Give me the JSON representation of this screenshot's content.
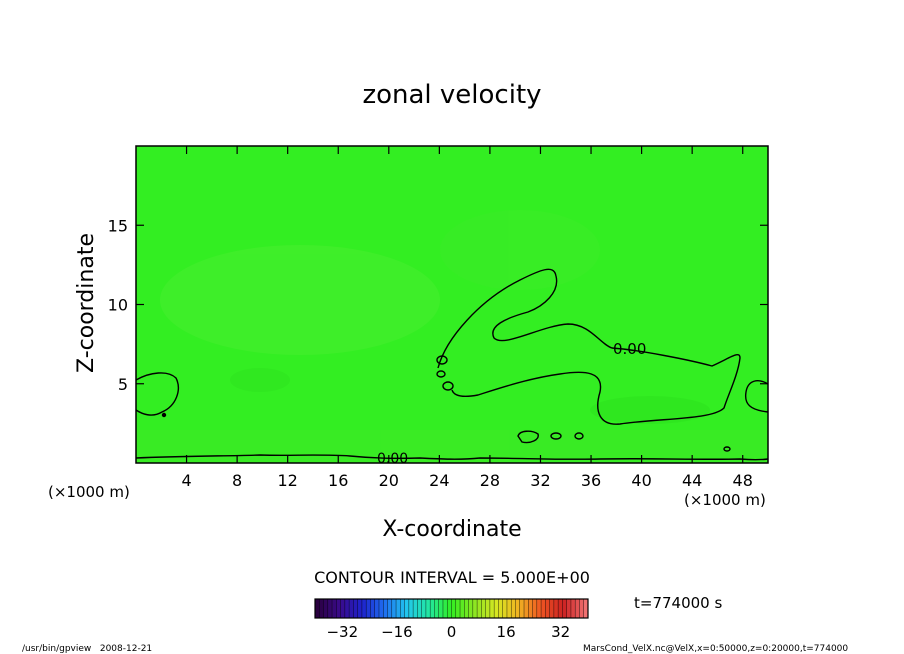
{
  "chart_data": {
    "type": "heatmap",
    "title": "zonal velocity",
    "xlabel": "X-coordinate",
    "ylabel": "Z-coordinate",
    "x_unit": "(×1000 m)",
    "xlim": [
      0,
      50
    ],
    "ylim": [
      0,
      20
    ],
    "x_ticks": [
      4,
      8,
      12,
      16,
      20,
      24,
      28,
      32,
      36,
      40,
      44,
      48
    ],
    "y_ticks": [
      5,
      10,
      15
    ],
    "field_color": "#33ee22",
    "contour_level_labels": [
      "0.00",
      "0.00"
    ],
    "contour_interval_text": "CONTOUR INTERVAL = 5.000E+00",
    "time_text": "t=774000 s",
    "colorbar": {
      "range": [
        -40,
        40
      ],
      "ticks": [
        -32,
        -16,
        0,
        16,
        32
      ],
      "colors": [
        "#2a0040",
        "#3a0a8a",
        "#1e22cc",
        "#1f6ef0",
        "#22c6ee",
        "#22e8a0",
        "#33ee22",
        "#8ae622",
        "#d6e622",
        "#f0b322",
        "#ee5522",
        "#cc2222",
        "#f07070"
      ]
    },
    "footer_left": "/usr/bin/gpview   2008-12-21",
    "footer_right": "MarsCond_VelX.nc@VelX,x=0:50000,z=0:20000,t=774000"
  }
}
